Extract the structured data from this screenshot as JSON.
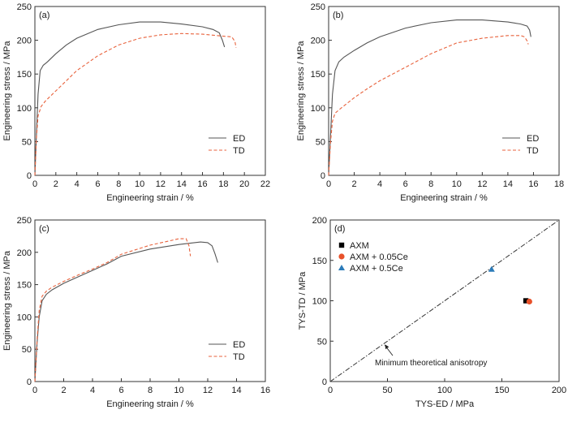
{
  "colors": {
    "ed_line": "#555555",
    "td_line": "#e8623c",
    "axm": "#000000",
    "axm_005ce": "#e8512a",
    "axm_05ce": "#2b7bb9",
    "reference_line": "#333333"
  },
  "chart_data": [
    {
      "type": "line",
      "panel_label": "(a)",
      "xlabel": "Engineering strain / %",
      "ylabel": "Engineering stress / MPa",
      "xlim": [
        0,
        22
      ],
      "ylim": [
        0,
        250
      ],
      "xticks": [
        0,
        2,
        4,
        6,
        8,
        10,
        12,
        14,
        16,
        18,
        20,
        22
      ],
      "yticks": [
        0,
        50,
        100,
        150,
        200,
        250
      ],
      "legend_position": "lower-right",
      "series": [
        {
          "name": "ED",
          "style": "solid",
          "x": [
            0,
            0.15,
            0.3,
            0.5,
            0.8,
            1.2,
            2,
            3,
            4,
            6,
            8,
            10,
            12,
            14,
            16,
            17,
            17.6,
            17.9,
            18.1
          ],
          "y": [
            0,
            60,
            120,
            155,
            163,
            168,
            180,
            193,
            203,
            216,
            223,
            227,
            227,
            224,
            220,
            216,
            211,
            200,
            190
          ]
        },
        {
          "name": "TD",
          "style": "dashed",
          "x": [
            0,
            0.15,
            0.3,
            0.6,
            1,
            2,
            3,
            4,
            6,
            8,
            10,
            12,
            14,
            16,
            18,
            18.8,
            19.1,
            19.2
          ],
          "y": [
            0,
            55,
            88,
            102,
            110,
            125,
            140,
            155,
            177,
            193,
            203,
            208,
            210,
            209,
            206,
            205,
            198,
            189
          ]
        }
      ]
    },
    {
      "type": "line",
      "panel_label": "(b)",
      "xlabel": "Engineering strain / %",
      "ylabel": "Engineering stress / MPa",
      "xlim": [
        0,
        18
      ],
      "ylim": [
        0,
        250
      ],
      "xticks": [
        0,
        2,
        4,
        6,
        8,
        10,
        12,
        14,
        16,
        18
      ],
      "yticks": [
        0,
        50,
        100,
        150,
        200,
        250
      ],
      "legend_position": "lower-right",
      "series": [
        {
          "name": "ED",
          "style": "solid",
          "x": [
            0,
            0.15,
            0.3,
            0.5,
            0.8,
            1.2,
            2,
            3,
            4,
            6,
            8,
            10,
            12,
            14,
            15,
            15.5,
            15.7,
            15.8
          ],
          "y": [
            0,
            60,
            120,
            155,
            168,
            175,
            185,
            196,
            205,
            218,
            226,
            230,
            230,
            227,
            224,
            221,
            215,
            205
          ]
        },
        {
          "name": "TD",
          "style": "dashed",
          "x": [
            0,
            0.15,
            0.3,
            0.5,
            1,
            2,
            3,
            4,
            6,
            8,
            10,
            12,
            14,
            15,
            15.3,
            15.5,
            15.6
          ],
          "y": [
            0,
            50,
            80,
            92,
            100,
            115,
            128,
            140,
            160,
            180,
            196,
            203,
            207,
            207,
            205,
            199,
            194
          ]
        }
      ]
    },
    {
      "type": "line",
      "panel_label": "(c)",
      "xlabel": "Engineering strain / %",
      "ylabel": "Engineering stress / MPa",
      "xlim": [
        0,
        16
      ],
      "ylim": [
        0,
        250
      ],
      "xticks": [
        0,
        2,
        4,
        6,
        8,
        10,
        12,
        14,
        16
      ],
      "yticks": [
        0,
        50,
        100,
        150,
        200,
        250
      ],
      "legend_position": "lower-right",
      "series": [
        {
          "name": "ED",
          "style": "solid",
          "x": [
            0,
            0.15,
            0.3,
            0.5,
            0.8,
            1.2,
            2,
            3,
            4,
            5,
            6,
            8,
            10,
            11.5,
            12,
            12.3,
            12.5,
            12.7
          ],
          "y": [
            0,
            60,
            100,
            125,
            135,
            142,
            152,
            162,
            172,
            182,
            194,
            205,
            212,
            216,
            215,
            210,
            198,
            184
          ]
        },
        {
          "name": "TD",
          "style": "dashed",
          "x": [
            0,
            0.15,
            0.3,
            0.5,
            0.8,
            1.2,
            2,
            3,
            4,
            5,
            6,
            8,
            10,
            10.5,
            10.7,
            10.8
          ],
          "y": [
            0,
            65,
            110,
            132,
            140,
            146,
            155,
            165,
            174,
            184,
            197,
            211,
            221,
            221,
            210,
            194
          ]
        }
      ]
    },
    {
      "type": "scatter",
      "panel_label": "(d)",
      "xlabel": "TYS-ED / MPa",
      "ylabel": "TYS-TD / MPa",
      "xlim": [
        0,
        200
      ],
      "ylim": [
        0,
        200
      ],
      "xticks": [
        0,
        50,
        100,
        150,
        200
      ],
      "yticks": [
        0,
        50,
        100,
        150,
        200
      ],
      "legend_position": "upper-left",
      "series": [
        {
          "name": "AXM",
          "marker": "square",
          "x": [
            171
          ],
          "y": [
            100
          ]
        },
        {
          "name": "AXM + 0.05Ce",
          "marker": "circle",
          "x": [
            174
          ],
          "y": [
            99
          ]
        },
        {
          "name": "AXM + 0.5Ce",
          "marker": "triangle",
          "x": [
            141
          ],
          "y": [
            139
          ]
        }
      ],
      "reference_line": {
        "x": [
          0,
          200
        ],
        "y": [
          0,
          200
        ],
        "style": "dash-dot"
      },
      "annotation": {
        "text": "Minimum theoretical anisotropy",
        "point_x": 47,
        "point_y": 47
      }
    }
  ]
}
